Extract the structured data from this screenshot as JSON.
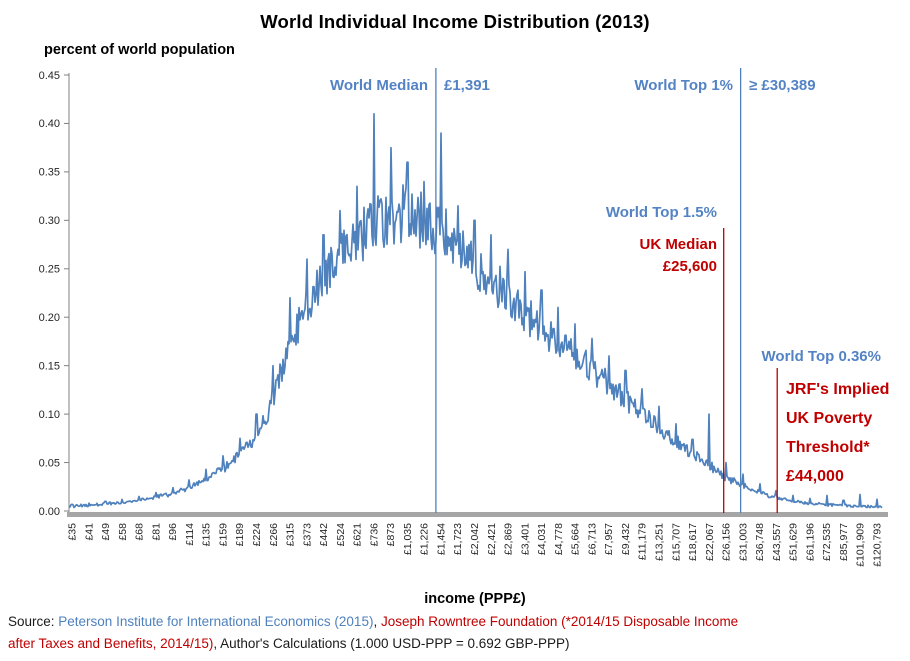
{
  "title": "World Individual Income Distribution (2013)",
  "axes": {
    "y_title": "percent of world population",
    "x_title": "income (PPP£)"
  },
  "annotations": {
    "world_median": {
      "label": "World Median",
      "value": "£1,391"
    },
    "world_top_1": {
      "label": "World Top 1%",
      "value": "≥ £30,389"
    },
    "world_top_1_5": {
      "label": "World Top 1.5%"
    },
    "uk_median": {
      "label": "UK Median",
      "value": "£25,600"
    },
    "world_top_0_36": {
      "label": "World Top 0.36%"
    },
    "jrf_threshold": {
      "lines": [
        "JRF's Implied",
        "UK Poverty",
        "Threshold*",
        "£44,000"
      ]
    }
  },
  "source": {
    "parts": [
      {
        "text": "Source: ",
        "style": "plain"
      },
      {
        "text": "Peterson Institute for International Economics (2015)",
        "style": "link"
      },
      {
        "text": ", ",
        "style": "plain"
      },
      {
        "text": "Joseph Rowntree Foundation (*2014/15 Disposable Income",
        "style": "red"
      },
      {
        "text": "after Taxes and Benefits, 2014/15)",
        "style": "red"
      },
      {
        "text": ", Author's Calculations (1.000 USD-PPP = 0.692 GBP-PPP)",
        "style": "plain"
      }
    ]
  },
  "colors": {
    "curve_blue": "#4F81BD",
    "annotation_blue_text": "#5383C4",
    "annotation_red": "#C00000",
    "axis_bar_gray": "#A6A6A6",
    "axis_line_gray": "#808080",
    "tick_text": "#262626"
  },
  "chart_data": {
    "type": "line",
    "title": "World Individual Income Distribution (2013)",
    "xlabel": "income (PPP£)",
    "ylabel": "percent of world population",
    "x_scale": "log",
    "grid": false,
    "legend": false,
    "ylim": [
      0,
      0.45
    ],
    "yticks": [
      0,
      0.05,
      0.1,
      0.15,
      0.2,
      0.25,
      0.3,
      0.35,
      0.4,
      0.45
    ],
    "categories": [
      "£35",
      "£41",
      "£49",
      "£58",
      "£68",
      "£81",
      "£96",
      "£114",
      "£135",
      "£159",
      "£189",
      "£224",
      "£266",
      "£315",
      "£373",
      "£442",
      "£524",
      "£621",
      "£736",
      "£873",
      "£1,035",
      "£1,226",
      "£1,454",
      "£1,723",
      "£2,042",
      "£2,421",
      "£2,869",
      "£3,401",
      "£4,031",
      "£4,778",
      "£5,664",
      "£6,713",
      "£7,957",
      "£9,432",
      "£11,179",
      "£13,251",
      "£15,707",
      "£18,617",
      "£22,067",
      "£26,156",
      "£31,003",
      "£36,748",
      "£43,557",
      "£51,629",
      "£61,196",
      "£72,535",
      "£85,977",
      "£101,909",
      "£120,793"
    ],
    "values": [
      0.005,
      0.006,
      0.0075,
      0.009,
      0.011,
      0.014,
      0.018,
      0.024,
      0.033,
      0.044,
      0.058,
      0.078,
      0.115,
      0.175,
      0.21,
      0.238,
      0.26,
      0.28,
      0.295,
      0.304,
      0.306,
      0.3,
      0.288,
      0.272,
      0.256,
      0.24,
      0.223,
      0.205,
      0.188,
      0.173,
      0.159,
      0.145,
      0.13,
      0.116,
      0.101,
      0.086,
      0.072,
      0.059,
      0.047,
      0.035,
      0.026,
      0.019,
      0.014,
      0.01,
      0.008,
      0.0065,
      0.0055,
      0.005,
      0.0045
    ],
    "bin_peaks": [
      0.007,
      0.008,
      0.01,
      0.012,
      0.015,
      0.019,
      0.024,
      0.032,
      0.043,
      0.057,
      0.075,
      0.1,
      0.15,
      0.22,
      0.26,
      0.285,
      0.31,
      0.335,
      0.41,
      0.375,
      0.36,
      0.34,
      0.39,
      0.315,
      0.3,
      0.285,
      0.27,
      0.247,
      0.228,
      0.21,
      0.193,
      0.178,
      0.16,
      0.145,
      0.126,
      0.108,
      0.09,
      0.074,
      0.1,
      0.05,
      0.038,
      0.028,
      0.021,
      0.016,
      0.013,
      0.016,
      0.011,
      0.017,
      0.012
    ],
    "series_color": "#4F81BD",
    "markers": [
      {
        "name": "world-median",
        "income": 1391,
        "label": "World Median",
        "value_label": "£1,391",
        "color": "#4F81BD"
      },
      {
        "name": "world-top-1pct",
        "income": 30389,
        "label": "World Top 1%",
        "value_label": "≥ £30,389",
        "color": "#4F81BD"
      },
      {
        "name": "uk-median",
        "income": 25600,
        "label": "UK Median",
        "value_label": "£25,600",
        "color": "#C00000"
      },
      {
        "name": "jrf-poverty-threshold",
        "income": 44000,
        "label": "JRF's Implied UK Poverty Threshold*",
        "value_label": "£44,000",
        "color": "#C00000"
      }
    ],
    "noise": {
      "seed": 987654321,
      "rel_amp": 0.1,
      "abs_amp": 0.0012
    }
  }
}
